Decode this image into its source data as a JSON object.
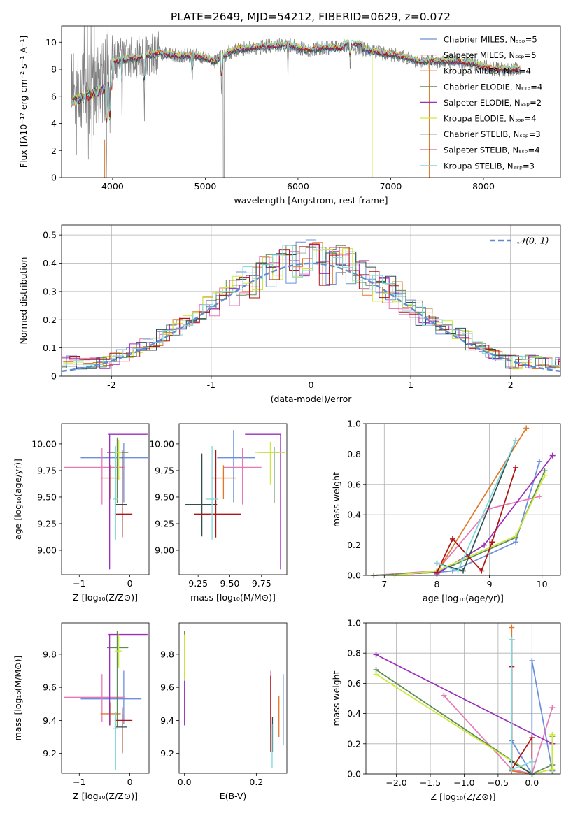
{
  "page_title": "PLATE=2649, MJD=54212, FIBERID=0629, z=0.072",
  "colors": {
    "Chabrier MILES": "#6a8fdc",
    "Salpeter MILES": "#e67ab8",
    "Kroupa MILES": "#e0782a",
    "Chabrier ELODIE": "#5e8a56",
    "Salpeter ELODIE": "#9b2fbd",
    "Kroupa ELODIE": "#cdea3c",
    "Chabrier STELIB": "#2f4f4f",
    "Salpeter STELIB": "#b01414",
    "Kroupa STELIB": "#7fd8dc",
    "data": "#808080",
    "normal": "#5b8bd0"
  },
  "chart_data": [
    {
      "id": "spectrum",
      "type": "line",
      "title": "PLATE=2649, MJD=54212, FIBERID=0629, z=0.072",
      "xlabel": "wavelength [Angstrom, rest frame]",
      "ylabel": "Flux [fλ10⁻¹⁷ erg cm⁻² s⁻¹ A⁻¹]",
      "xlim": [
        3450,
        8830
      ],
      "ylim": [
        0,
        11.2
      ],
      "xticks": [
        4000,
        5000,
        6000,
        7000,
        8000
      ],
      "yticks": [
        0,
        2,
        4,
        6,
        8,
        10
      ],
      "continuum": [
        [
          3550,
          6.0
        ],
        [
          3700,
          6.5
        ],
        [
          3800,
          6.3
        ],
        [
          3900,
          7.0
        ],
        [
          4000,
          8.6
        ],
        [
          4100,
          8.7
        ],
        [
          4300,
          8.9
        ],
        [
          4500,
          9.2
        ],
        [
          4700,
          9.0
        ],
        [
          4900,
          9.0
        ],
        [
          5100,
          8.6
        ],
        [
          5300,
          9.4
        ],
        [
          5500,
          9.6
        ],
        [
          5700,
          9.7
        ],
        [
          5900,
          9.8
        ],
        [
          6100,
          9.4
        ],
        [
          6300,
          9.6
        ],
        [
          6500,
          9.6
        ],
        [
          6700,
          9.5
        ],
        [
          6900,
          9.2
        ],
        [
          7100,
          9.0
        ],
        [
          7300,
          8.6
        ],
        [
          7500,
          8.6
        ],
        [
          7700,
          8.6
        ],
        [
          7900,
          8.4
        ],
        [
          8100,
          8.0
        ],
        [
          8300,
          8.0
        ],
        [
          8400,
          8.0
        ]
      ],
      "legend_location": "upper right",
      "legend": [
        "Chabrier MILES, Nₛₛₚ=5",
        "Salpeter MILES, Nₛₛₚ=5",
        "Kroupa MILES, Nₛₛₚ=4",
        "Chabrier ELODIE, Nₛₛₚ=4",
        "Salpeter ELODIE, Nₛₛₚ=2",
        "Kroupa ELODIE, Nₛₛₚ=4",
        "Chabrier STELIB, Nₛₛₚ=3",
        "Salpeter STELIB, Nₛₛₚ=4",
        "Kroupa STELIB, Nₛₛₚ=3"
      ]
    },
    {
      "id": "residuals",
      "type": "histogram",
      "xlabel": "(data-model)/error",
      "ylabel": "Normed distribution",
      "xlim": [
        -2.5,
        2.5
      ],
      "ylim": [
        0,
        0.535
      ],
      "xticks": [
        -2,
        -1,
        0,
        1,
        2
      ],
      "yticks": [
        0.0,
        0.1,
        0.2,
        0.3,
        0.4,
        0.5
      ],
      "grid": true,
      "legend_location": "upper right",
      "legend": [
        "𝒩(0, 1)"
      ]
    },
    {
      "id": "z-age",
      "type": "errorbar",
      "xlabel": "Z [log₁₀(Z/Z⊙)]",
      "ylabel": "age  [log₁₀(age/yr)]",
      "xlim": [
        -1.35,
        0.38
      ],
      "ylim": [
        8.77,
        10.19
      ],
      "xticks": [
        -1,
        0
      ],
      "xticklabels": [
        "−1",
        "0"
      ],
      "yticks": [
        9.0,
        9.25,
        9.5,
        9.75,
        10.0
      ],
      "yticklabels": [
        "9.00",
        "9.25",
        "9.50",
        "9.75",
        "10.00"
      ],
      "points": [
        {
          "model": "Chabrier MILES",
          "x": -0.12,
          "xerr": [
            0.85,
            0.48
          ],
          "y": 9.87,
          "yerr": [
            0.42,
            0.14
          ]
        },
        {
          "model": "Salpeter MILES",
          "x": -0.55,
          "xerr": [
            0.75,
            0.45
          ],
          "y": 9.78,
          "yerr": [
            0.35,
            0.18
          ]
        },
        {
          "model": "Kroupa MILES",
          "x": -0.38,
          "xerr": [
            0.2,
            0.2
          ],
          "y": 9.68,
          "yerr": [
            0.2,
            0.12
          ]
        },
        {
          "model": "Chabrier ELODIE",
          "x": -0.25,
          "xerr": [
            0.2,
            0.22
          ],
          "y": 9.92,
          "yerr": [
            0.48,
            0.14
          ]
        },
        {
          "model": "Salpeter ELODIE",
          "x": -0.4,
          "xerr": [
            0.02,
            0.75
          ],
          "y": 10.09,
          "yerr": [
            1.27,
            0.0
          ]
        },
        {
          "model": "Kroupa ELODIE",
          "x": -0.22,
          "xerr": [
            0.08,
            0.06
          ],
          "y": 9.92,
          "yerr": [
            0.26,
            0.12
          ]
        },
        {
          "model": "Chabrier STELIB",
          "x": -0.15,
          "xerr": [
            0.15,
            0.1
          ],
          "y": 9.43,
          "yerr": [
            0.3,
            0.48
          ]
        },
        {
          "model": "Salpeter STELIB",
          "x": -0.15,
          "xerr": [
            0.15,
            0.2
          ],
          "y": 9.34,
          "yerr": [
            0.22,
            0.6
          ]
        },
        {
          "model": "Kroupa STELIB",
          "x": -0.28,
          "xerr": [
            0.05,
            0.05
          ],
          "y": 9.48,
          "yerr": [
            0.38,
            0.5
          ]
        }
      ]
    },
    {
      "id": "mass-age",
      "type": "errorbar",
      "xlabel": "mass [log₁₀(M/M⊙)]",
      "ylabel": "",
      "xlim": [
        9.1,
        9.95
      ],
      "ylim": [
        8.77,
        10.19
      ],
      "xticks": [
        9.25,
        9.5,
        9.75
      ],
      "xticklabels": [
        "9.25",
        "9.50",
        "9.75"
      ],
      "yticks": [
        9.0,
        9.25,
        9.5,
        9.75,
        10.0
      ],
      "yticklabels": [
        "9.00",
        "9.25",
        "9.50",
        "9.75",
        "10.00"
      ],
      "points": [
        {
          "model": "Chabrier MILES",
          "x": 9.53,
          "xerr": [
            0.13,
            0.17
          ],
          "y": 9.87,
          "yerr": [
            0.42,
            0.26
          ]
        },
        {
          "model": "Salpeter MILES",
          "x": 9.6,
          "xerr": [
            0.15,
            0.15
          ],
          "y": 9.78,
          "yerr": [
            0.35,
            0.18
          ]
        },
        {
          "model": "Kroupa MILES",
          "x": 9.45,
          "xerr": [
            0.1,
            0.1
          ],
          "y": 9.68,
          "yerr": [
            0.2,
            0.12
          ]
        },
        {
          "model": "Chabrier ELODIE",
          "x": 9.85,
          "xerr": [
            0.12,
            0.08
          ],
          "y": 9.92,
          "yerr": [
            0.48,
            0.05
          ]
        },
        {
          "model": "Salpeter ELODIE",
          "x": 9.9,
          "xerr": [
            0.28,
            0.0
          ],
          "y": 10.09,
          "yerr": [
            1.27,
            0.0
          ]
        },
        {
          "model": "Kroupa ELODIE",
          "x": 9.82,
          "xerr": [
            0.12,
            0.12
          ],
          "y": 9.92,
          "yerr": [
            0.3,
            0.1
          ]
        },
        {
          "model": "Chabrier STELIB",
          "x": 9.28,
          "xerr": [
            0.13,
            0.12
          ],
          "y": 9.43,
          "yerr": [
            0.3,
            0.48
          ]
        },
        {
          "model": "Salpeter STELIB",
          "x": 9.39,
          "xerr": [
            0.17,
            0.2
          ],
          "y": 9.34,
          "yerr": [
            0.22,
            0.6
          ]
        },
        {
          "model": "Kroupa STELIB",
          "x": 9.36,
          "xerr": [
            0.05,
            0.05
          ],
          "y": 9.48,
          "yerr": [
            0.38,
            0.5
          ]
        }
      ]
    },
    {
      "id": "age-weight",
      "type": "line",
      "xlabel": "age  [log₁₀(age/yr)]",
      "ylabel": "mass weight",
      "xlim": [
        6.65,
        10.35
      ],
      "ylim": [
        0,
        1.0
      ],
      "xticks": [
        7,
        8,
        9,
        10
      ],
      "yticks": [
        0,
        0.2,
        0.4,
        0.6,
        0.8,
        1.0
      ],
      "yticklabels": [
        "0.0",
        "0.2",
        "0.4",
        "0.6",
        "0.8",
        "1.0"
      ],
      "grid": true,
      "series": [
        {
          "name": "Chabrier MILES",
          "x": [
            6.8,
            8.0,
            8.3,
            9.5,
            9.95
          ],
          "y": [
            0.0,
            0.02,
            0.03,
            0.22,
            0.75
          ]
        },
        {
          "name": "Salpeter MILES",
          "x": [
            6.8,
            8.0,
            9.0,
            9.95
          ],
          "y": [
            0.0,
            0.03,
            0.44,
            0.52
          ]
        },
        {
          "name": "Kroupa MILES",
          "x": [
            6.8,
            8.0,
            9.7
          ],
          "y": [
            0.0,
            0.02,
            0.97
          ]
        },
        {
          "name": "Chabrier ELODIE",
          "x": [
            6.8,
            8.0,
            9.5,
            10.05
          ],
          "y": [
            0.0,
            0.02,
            0.25,
            0.69
          ]
        },
        {
          "name": "Salpeter ELODIE",
          "x": [
            8.0,
            8.9,
            10.2
          ],
          "y": [
            0.01,
            0.2,
            0.79
          ]
        },
        {
          "name": "Kroupa ELODIE",
          "x": [
            7.2,
            8.0,
            9.5,
            10.05
          ],
          "y": [
            0.0,
            0.03,
            0.26,
            0.66
          ]
        },
        {
          "name": "Chabrier STELIB",
          "x": [
            8.0,
            8.5,
            9.5
          ],
          "y": [
            0.08,
            0.03,
            0.89
          ]
        },
        {
          "name": "Salpeter STELIB",
          "x": [
            8.0,
            8.3,
            8.85,
            9.05,
            9.5
          ],
          "y": [
            0.02,
            0.24,
            0.03,
            0.22,
            0.71
          ]
        },
        {
          "name": "Kroupa STELIB",
          "x": [
            8.0,
            8.4,
            9.5
          ],
          "y": [
            0.08,
            0.03,
            0.89
          ]
        }
      ]
    },
    {
      "id": "z-mass",
      "type": "errorbar",
      "xlabel": "Z [log₁₀(Z/Z⊙)]",
      "ylabel": "mass [log₁₀(M/M⊙)]",
      "xlim": [
        -1.35,
        0.38
      ],
      "ylim": [
        9.08,
        9.99
      ],
      "xticks": [
        -1,
        0
      ],
      "xticklabels": [
        "−1",
        "0"
      ],
      "yticks": [
        9.2,
        9.4,
        9.6,
        9.8
      ],
      "yticklabels": [
        "9.2",
        "9.4",
        "9.6",
        "9.8"
      ],
      "points": [
        {
          "model": "Chabrier MILES",
          "x": -0.12,
          "xerr": [
            0.85,
            0.35
          ],
          "y": 9.53,
          "yerr": [
            0.15,
            0.17
          ]
        },
        {
          "model": "Salpeter MILES",
          "x": -0.55,
          "xerr": [
            0.75,
            0.45
          ],
          "y": 9.54,
          "yerr": [
            0.15,
            0.14
          ]
        },
        {
          "model": "Kroupa MILES",
          "x": -0.38,
          "xerr": [
            0.2,
            0.2
          ],
          "y": 9.44,
          "yerr": [
            0.07,
            0.07
          ]
        },
        {
          "model": "Chabrier ELODIE",
          "x": -0.25,
          "xerr": [
            0.2,
            0.22
          ],
          "y": 9.84,
          "yerr": [
            0.48,
            0.1
          ]
        },
        {
          "model": "Salpeter ELODIE",
          "x": -0.4,
          "xerr": [
            0.02,
            0.75
          ],
          "y": 9.92,
          "yerr": [
            0.55,
            0.0
          ]
        },
        {
          "model": "Kroupa ELODIE",
          "x": -0.22,
          "xerr": [
            0.08,
            0.06
          ],
          "y": 9.82,
          "yerr": [
            0.1,
            0.1
          ]
        },
        {
          "model": "Chabrier STELIB",
          "x": -0.15,
          "xerr": [
            0.15,
            0.1
          ],
          "y": 9.36,
          "yerr": [
            0.15,
            0.08
          ]
        },
        {
          "model": "Salpeter STELIB",
          "x": -0.15,
          "xerr": [
            0.15,
            0.2
          ],
          "y": 9.4,
          "yerr": [
            0.2,
            0.08
          ]
        },
        {
          "model": "Kroupa STELIB",
          "x": -0.28,
          "xerr": [
            0.05,
            0.05
          ],
          "y": 9.35,
          "yerr": [
            0.25,
            0.1
          ]
        }
      ]
    },
    {
      "id": "ebv-mass",
      "type": "errorbar",
      "xlabel": "E(B-V)",
      "ylabel": "",
      "xlim": [
        -0.015,
        0.285
      ],
      "ylim": [
        9.08,
        9.99
      ],
      "xticks": [
        0.0,
        0.2
      ],
      "xticklabels": [
        "0.0",
        "0.2"
      ],
      "yticks": [
        9.2,
        9.4,
        9.6,
        9.8
      ],
      "yticklabels": [
        "9.2",
        "9.4",
        "9.6",
        "9.8"
      ],
      "points": [
        {
          "model": "Chabrier MILES",
          "x": 0.275,
          "xerr": [
            0,
            0
          ],
          "y": 9.53,
          "yerr": [
            0.28,
            0.15
          ]
        },
        {
          "model": "Salpeter MILES",
          "x": 0.24,
          "xerr": [
            0,
            0
          ],
          "y": 9.55,
          "yerr": [
            0.2,
            0.15
          ]
        },
        {
          "model": "Kroupa MILES",
          "x": 0.263,
          "xerr": [
            0,
            0
          ],
          "y": 9.43,
          "yerr": [
            0.13,
            0.12
          ]
        },
        {
          "model": "Chabrier ELODIE",
          "x": 0.0,
          "xerr": [
            0,
            0
          ],
          "y": 9.84,
          "yerr": [
            0.2,
            0.1
          ]
        },
        {
          "model": "Salpeter ELODIE",
          "x": 0.0,
          "xerr": [
            0,
            0
          ],
          "y": 9.55,
          "yerr": [
            0.18,
            0.12
          ]
        },
        {
          "model": "Kroupa ELODIE",
          "x": 0.0,
          "xerr": [
            0,
            0
          ],
          "y": 9.82,
          "yerr": [
            0.18,
            0.1
          ]
        },
        {
          "model": "Chabrier STELIB",
          "x": 0.245,
          "xerr": [
            0,
            0
          ],
          "y": 9.36,
          "yerr": [
            0.15,
            0.06
          ]
        },
        {
          "model": "Salpeter STELIB",
          "x": 0.24,
          "xerr": [
            0,
            0
          ],
          "y": 9.45,
          "yerr": [
            0.24,
            0.22
          ]
        },
        {
          "model": "Kroupa STELIB",
          "x": 0.244,
          "xerr": [
            0,
            0
          ],
          "y": 9.3,
          "yerr": [
            0.19,
            0.08
          ]
        }
      ]
    },
    {
      "id": "z-weight",
      "type": "line",
      "xlabel": "Z [log₁₀(Z/Z⊙)]",
      "ylabel": "mass weight",
      "xlim": [
        -2.45,
        0.42
      ],
      "ylim": [
        0,
        1.0
      ],
      "xticks": [
        -2.0,
        -1.5,
        -1.0,
        -0.5,
        0.0
      ],
      "xticklabels": [
        "−2.0",
        "−1.5",
        "−1.0",
        "−0.5",
        "0.0"
      ],
      "yticks": [
        0,
        0.2,
        0.4,
        0.6,
        0.8,
        1.0
      ],
      "yticklabels": [
        "0.0",
        "0.2",
        "0.4",
        "0.6",
        "0.8",
        "1.0"
      ],
      "grid": true,
      "series": [
        {
          "name": "Chabrier MILES",
          "x": [
            -0.3,
            -0.3,
            0.0,
            0.0,
            0.3
          ],
          "y": [
            0.89,
            0.22,
            0.0,
            0.75,
            0.02
          ]
        },
        {
          "name": "Salpeter MILES",
          "x": [
            -1.3,
            -0.3,
            0.0,
            0.3
          ],
          "y": [
            0.52,
            0.03,
            0.0,
            0.44
          ]
        },
        {
          "name": "Kroupa MILES",
          "x": [
            -0.3,
            -0.3,
            0.0
          ],
          "y": [
            0.97,
            0.02,
            0.0
          ]
        },
        {
          "name": "Chabrier ELODIE",
          "x": [
            -2.3,
            0.0,
            0.3,
            0.3
          ],
          "y": [
            0.69,
            0.0,
            0.06,
            0.25
          ]
        },
        {
          "name": "Salpeter ELODIE",
          "x": [
            -2.3,
            0.3
          ],
          "y": [
            0.79,
            0.2
          ]
        },
        {
          "name": "Kroupa ELODIE",
          "x": [
            -2.3,
            0.0,
            0.3,
            0.3
          ],
          "y": [
            0.66,
            0.0,
            0.03,
            0.26
          ]
        },
        {
          "name": "Chabrier STELIB",
          "x": [
            -0.3,
            -0.3,
            0.0
          ],
          "y": [
            0.89,
            0.08,
            0.0
          ]
        },
        {
          "name": "Salpeter STELIB",
          "x": [
            -0.3,
            -0.3,
            0.0,
            0.0
          ],
          "y": [
            0.71,
            0.03,
            0.24,
            0.0
          ]
        },
        {
          "name": "Kroupa STELIB",
          "x": [
            -0.3,
            -0.3,
            0.0,
            0.0
          ],
          "y": [
            0.89,
            0.03,
            0.08,
            0.0
          ]
        }
      ]
    }
  ]
}
